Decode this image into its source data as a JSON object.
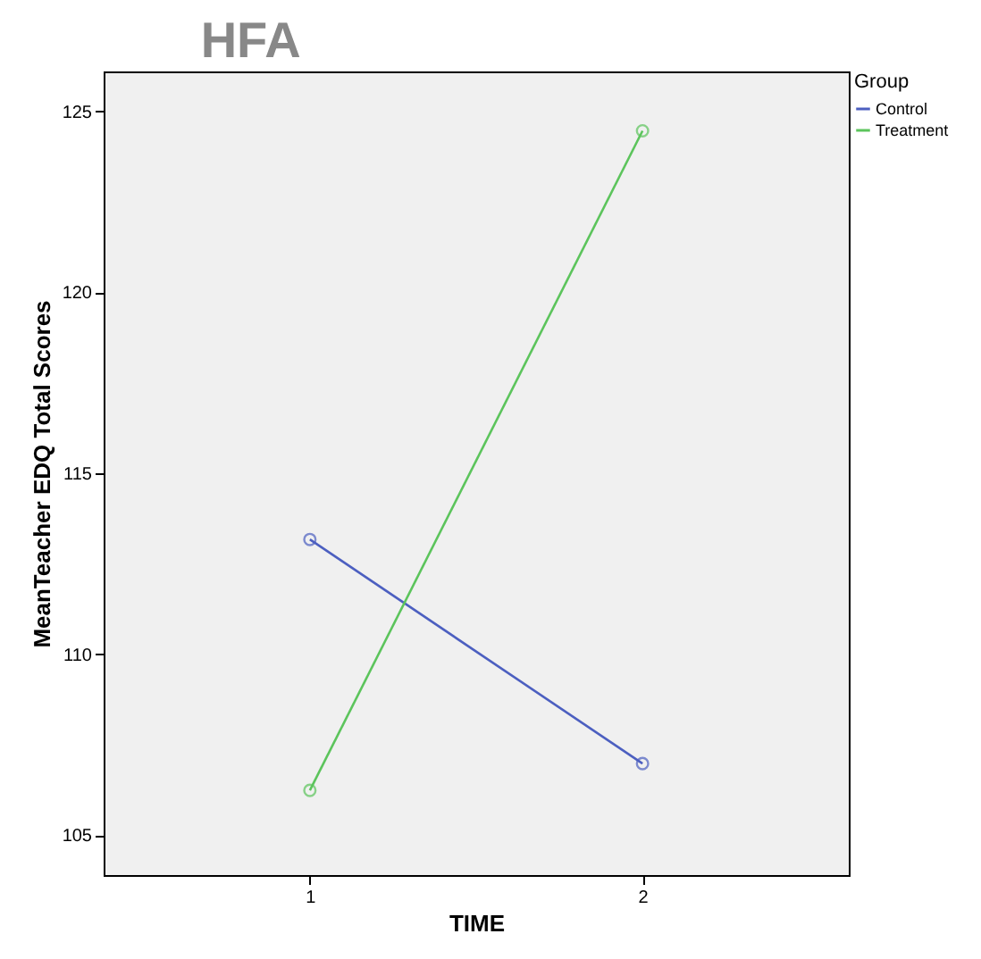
{
  "chart_data": {
    "type": "line",
    "title": "HFA",
    "xlabel": "TIME",
    "ylabel": "MeanTeacher EDQ Total Scores",
    "legend_title": "Group",
    "categories": [
      "1",
      "2"
    ],
    "series": [
      {
        "name": "Control",
        "color": "#4c5fc0",
        "values": [
          113.17,
          106.98
        ]
      },
      {
        "name": "Treatment",
        "color": "#5cc45c",
        "values": [
          106.24,
          124.46
        ]
      }
    ],
    "ylim": [
      103.9,
      126.1
    ],
    "yticks": [
      105,
      110,
      115,
      120,
      125
    ],
    "grid": false,
    "legend": "top right",
    "marker": "circle",
    "line_style": "solid"
  }
}
